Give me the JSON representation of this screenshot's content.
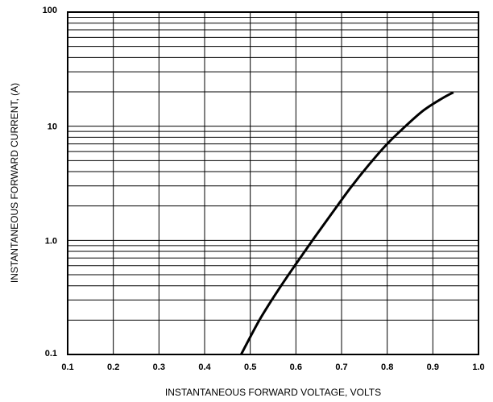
{
  "chart_data": {
    "type": "line",
    "title": "",
    "xlabel": "INSTANTANEOUS FORWARD VOLTAGE, VOLTS",
    "ylabel": "INSTANTANEOUS  FORWARD CURRENT, (A)",
    "xlim": [
      0.1,
      1.0
    ],
    "ylim": [
      0.1,
      100
    ],
    "yscale": "log",
    "grid": true,
    "legend": "none",
    "x_ticks": [
      0.1,
      0.2,
      0.3,
      0.4,
      0.5,
      0.6,
      0.7,
      0.8,
      0.9,
      1.0
    ],
    "x_tick_labels": [
      "0.1",
      "0.2",
      "0.3",
      "0.4",
      "0.5",
      "0.6",
      "0.7",
      "0.8",
      "0.9",
      "1.0"
    ],
    "y_ticks": [
      0.1,
      1.0,
      10,
      100
    ],
    "y_tick_labels": [
      "0.1",
      "1.0",
      "10",
      "100"
    ],
    "series": [
      {
        "x": [
          0.48,
          0.52,
          0.56,
          0.6,
          0.64,
          0.68,
          0.72,
          0.76,
          0.8,
          0.84,
          0.88,
          0.92,
          0.945
        ],
        "y": [
          0.1,
          0.2,
          0.36,
          0.62,
          1.05,
          1.75,
          2.9,
          4.6,
          7.0,
          10.0,
          13.8,
          17.5,
          19.8
        ]
      }
    ],
    "colors": {
      "line": "#000000",
      "grid": "#000000"
    }
  }
}
